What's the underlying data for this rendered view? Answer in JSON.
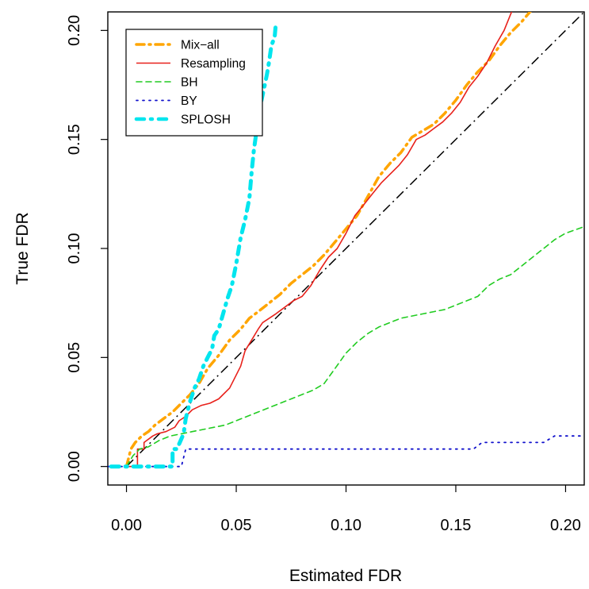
{
  "chart_data": {
    "type": "line",
    "title": "",
    "xlabel": "Estimated FDR",
    "ylabel": "True FDR",
    "xlim": [
      -0.0085,
      0.2085
    ],
    "ylim": [
      -0.0085,
      0.2085
    ],
    "x_ticks": [
      0.0,
      0.05,
      0.1,
      0.15,
      0.2
    ],
    "x_tick_labels": [
      "0.00",
      "0.05",
      "0.10",
      "0.15",
      "0.20"
    ],
    "y_ticks": [
      0.0,
      0.05,
      0.1,
      0.15,
      0.2
    ],
    "y_tick_labels": [
      "0.00",
      "0.05",
      "0.10",
      "0.15",
      "0.20"
    ],
    "grid": false,
    "legend_position": "top-left",
    "reference_line": {
      "x": [
        0,
        0.2085
      ],
      "y": [
        0,
        0.2085
      ],
      "color": "#000000",
      "style": "dash-dot"
    },
    "series": [
      {
        "name": "Mix−all",
        "color": "#FFA500",
        "style": "dash-dot",
        "width": 3.5,
        "x": [
          0.0,
          0.002,
          0.004,
          0.007,
          0.01,
          0.013,
          0.017,
          0.021,
          0.025,
          0.029,
          0.033,
          0.037,
          0.042,
          0.047,
          0.052,
          0.056,
          0.06,
          0.065,
          0.07,
          0.075,
          0.08,
          0.085,
          0.09,
          0.095,
          0.1,
          0.105,
          0.11,
          0.115,
          0.12,
          0.125,
          0.13,
          0.135,
          0.14,
          0.145,
          0.15,
          0.155,
          0.16,
          0.165,
          0.17,
          0.175,
          0.18,
          0.185
        ],
        "y": [
          0.0,
          0.008,
          0.011,
          0.014,
          0.016,
          0.019,
          0.022,
          0.025,
          0.029,
          0.033,
          0.038,
          0.045,
          0.051,
          0.058,
          0.063,
          0.068,
          0.071,
          0.075,
          0.079,
          0.084,
          0.088,
          0.092,
          0.097,
          0.103,
          0.109,
          0.115,
          0.124,
          0.133,
          0.139,
          0.144,
          0.151,
          0.154,
          0.157,
          0.162,
          0.168,
          0.175,
          0.181,
          0.186,
          0.193,
          0.199,
          0.204,
          0.21
        ]
      },
      {
        "name": "Resampling",
        "color": "#E8211B",
        "style": "solid",
        "width": 1.6,
        "x": [
          0.0,
          0.005,
          0.005,
          0.008,
          0.008,
          0.012,
          0.014,
          0.018,
          0.022,
          0.024,
          0.027,
          0.03,
          0.034,
          0.038,
          0.042,
          0.047,
          0.052,
          0.054,
          0.057,
          0.06,
          0.062,
          0.065,
          0.068,
          0.072,
          0.076,
          0.08,
          0.084,
          0.088,
          0.092,
          0.096,
          0.1,
          0.104,
          0.108,
          0.112,
          0.116,
          0.12,
          0.124,
          0.128,
          0.132,
          0.136,
          0.14,
          0.144,
          0.148,
          0.152,
          0.156,
          0.16,
          0.164,
          0.168,
          0.172,
          0.176
        ],
        "y": [
          0.0,
          0.0,
          0.008,
          0.008,
          0.011,
          0.014,
          0.015,
          0.016,
          0.018,
          0.021,
          0.023,
          0.026,
          0.028,
          0.029,
          0.031,
          0.036,
          0.046,
          0.053,
          0.058,
          0.063,
          0.066,
          0.068,
          0.07,
          0.073,
          0.076,
          0.078,
          0.083,
          0.09,
          0.096,
          0.1,
          0.107,
          0.115,
          0.12,
          0.125,
          0.13,
          0.134,
          0.138,
          0.143,
          0.15,
          0.152,
          0.155,
          0.158,
          0.162,
          0.167,
          0.174,
          0.179,
          0.185,
          0.193,
          0.2,
          0.21
        ]
      },
      {
        "name": "BH",
        "color": "#22CC22",
        "style": "dashed",
        "width": 1.6,
        "x": [
          0.0,
          0.003,
          0.006,
          0.01,
          0.015,
          0.02,
          0.025,
          0.03,
          0.035,
          0.04,
          0.045,
          0.05,
          0.055,
          0.06,
          0.065,
          0.07,
          0.075,
          0.08,
          0.085,
          0.09,
          0.095,
          0.1,
          0.105,
          0.11,
          0.115,
          0.12,
          0.125,
          0.13,
          0.135,
          0.14,
          0.145,
          0.15,
          0.155,
          0.16,
          0.165,
          0.17,
          0.175,
          0.18,
          0.185,
          0.19,
          0.195,
          0.2,
          0.2085
        ],
        "y": [
          0.0,
          0.005,
          0.008,
          0.009,
          0.012,
          0.014,
          0.015,
          0.016,
          0.017,
          0.018,
          0.019,
          0.021,
          0.023,
          0.025,
          0.027,
          0.029,
          0.031,
          0.033,
          0.035,
          0.038,
          0.045,
          0.052,
          0.057,
          0.061,
          0.064,
          0.066,
          0.068,
          0.069,
          0.07,
          0.071,
          0.072,
          0.074,
          0.076,
          0.078,
          0.083,
          0.086,
          0.088,
          0.092,
          0.096,
          0.1,
          0.104,
          0.107,
          0.11
        ]
      },
      {
        "name": "BY",
        "color": "#1111CC",
        "style": "dotted",
        "width": 1.8,
        "x": [
          -0.0085,
          0.0,
          0.005,
          0.01,
          0.015,
          0.02,
          0.025,
          0.027,
          0.03,
          0.06,
          0.1,
          0.14,
          0.158,
          0.162,
          0.18,
          0.19,
          0.195,
          0.2085
        ],
        "y": [
          0.0,
          0.0,
          0.0,
          0.0,
          0.0,
          0.0,
          0.0,
          0.008,
          0.008,
          0.008,
          0.008,
          0.008,
          0.008,
          0.011,
          0.011,
          0.011,
          0.014,
          0.014
        ]
      },
      {
        "name": "SPLOSH",
        "color": "#00E5EE",
        "style": "dash-dot",
        "width": 5,
        "x": [
          -0.007,
          0.003,
          0.004,
          0.008,
          0.009,
          0.0105,
          0.0105,
          0.012,
          0.018,
          0.02,
          0.021,
          0.021,
          0.023,
          0.026,
          0.027,
          0.028,
          0.029,
          0.031,
          0.033,
          0.035,
          0.037,
          0.039,
          0.04,
          0.042,
          0.044,
          0.046,
          0.048,
          0.05,
          0.052,
          0.054,
          0.056,
          0.057,
          0.058,
          0.059,
          0.06,
          0.0615,
          0.063,
          0.064,
          0.065,
          0.066,
          0.0675,
          0.068
        ],
        "y": [
          0.0,
          0.0,
          0.0,
          0.0,
          0.0,
          0.0,
          0.0,
          0.0,
          0.0,
          0.0,
          0.0,
          0.008,
          0.008,
          0.015,
          0.022,
          0.026,
          0.03,
          0.036,
          0.04,
          0.046,
          0.05,
          0.054,
          0.06,
          0.063,
          0.07,
          0.077,
          0.083,
          0.093,
          0.105,
          0.113,
          0.123,
          0.135,
          0.145,
          0.152,
          0.16,
          0.168,
          0.175,
          0.18,
          0.186,
          0.193,
          0.197,
          0.203
        ]
      }
    ]
  }
}
